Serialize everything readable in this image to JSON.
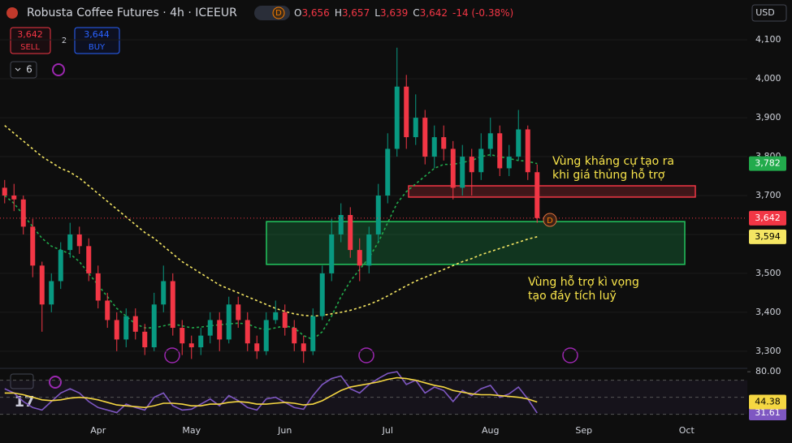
{
  "header": {
    "symbol": "Robusta Coffee Futures · 4h · ICEEUR",
    "badge": "D",
    "ohlc": [
      {
        "key": "O",
        "value": "3,656"
      },
      {
        "key": "H",
        "value": "3,657"
      },
      {
        "key": "L",
        "value": "3,639"
      },
      {
        "key": "C",
        "value": "3,642"
      }
    ],
    "change": "-14 (-0.38%)",
    "sell": {
      "price": "3,642",
      "label": "SELL"
    },
    "spread": "2",
    "buy": {
      "price": "3,644",
      "label": "BUY"
    },
    "indicators": "6",
    "currency": "USD"
  },
  "chart_data": [
    {
      "type": "candlestick",
      "up_color": "#089981",
      "down_color": "#f23645",
      "grid": true,
      "categories": [
        null,
        null,
        null,
        null,
        null,
        null,
        null,
        null,
        null,
        null,
        "Apr",
        null,
        null,
        null,
        null,
        null,
        null,
        null,
        null,
        null,
        "May",
        null,
        null,
        null,
        null,
        null,
        null,
        null,
        null,
        null,
        "Jun",
        null,
        null,
        null,
        null,
        null,
        null,
        null,
        null,
        null,
        null,
        "Jul",
        null,
        null,
        null,
        null,
        null,
        null,
        null,
        null,
        null,
        null,
        "Aug",
        null,
        null,
        null,
        null,
        null,
        null,
        null,
        null,
        null,
        "Sep",
        null,
        null,
        null,
        null,
        null,
        null,
        null,
        null,
        null,
        null,
        "Oct",
        null,
        null,
        null,
        null,
        null,
        null
      ],
      "ohlc": {
        "open": [
          3720,
          3700,
          3690,
          3620,
          3520,
          3420,
          3480,
          3560,
          3600,
          3570,
          3500,
          3430,
          3380,
          3330,
          3390,
          3350,
          3310,
          3420,
          3480,
          3360,
          3320,
          3310,
          3340,
          3380,
          3330,
          3420,
          3380,
          3320,
          3300,
          3380,
          3400,
          3360,
          3320,
          3300,
          3390,
          3500,
          3600,
          3650,
          3560,
          3520,
          3600,
          3700,
          3820,
          3980,
          3850,
          3900,
          3800,
          3850,
          3820,
          3720,
          3800,
          3760,
          3820,
          3860,
          3770,
          3800,
          3870,
          3760,
          null,
          null,
          null,
          null,
          null,
          null,
          null,
          null,
          null,
          null,
          null,
          null,
          null,
          null,
          null,
          null,
          null,
          null,
          null,
          null,
          null,
          null
        ],
        "high": [
          3740,
          3730,
          3700,
          3640,
          3530,
          3500,
          3580,
          3630,
          3620,
          3590,
          3520,
          3450,
          3400,
          3410,
          3410,
          3370,
          3450,
          3520,
          3500,
          3380,
          3340,
          3360,
          3400,
          3400,
          3440,
          3440,
          3400,
          3340,
          3400,
          3430,
          3420,
          3380,
          3340,
          3410,
          3520,
          3640,
          3680,
          3670,
          3590,
          3620,
          3730,
          3860,
          4080,
          4010,
          3960,
          3920,
          3880,
          3880,
          3840,
          3830,
          3820,
          3860,
          3900,
          3880,
          3830,
          3920,
          3880,
          3780,
          null,
          null,
          null,
          null,
          null,
          null,
          null,
          null,
          null,
          null,
          null,
          null,
          null,
          null,
          null,
          null,
          null,
          null,
          null,
          null,
          null,
          null
        ],
        "low": [
          3680,
          3660,
          3600,
          3490,
          3350,
          3400,
          3460,
          3540,
          3550,
          3480,
          3410,
          3360,
          3300,
          3310,
          3330,
          3290,
          3300,
          3400,
          3340,
          3290,
          3280,
          3290,
          3320,
          3300,
          3320,
          3360,
          3300,
          3280,
          3290,
          3370,
          3340,
          3300,
          3270,
          3290,
          3380,
          3480,
          3580,
          3540,
          3480,
          3500,
          3580,
          3680,
          3800,
          3820,
          3830,
          3780,
          3770,
          3790,
          3690,
          3700,
          3700,
          3740,
          3800,
          3750,
          3750,
          3790,
          3740,
          3630,
          null,
          null,
          null,
          null,
          null,
          null,
          null,
          null,
          null,
          null,
          null,
          null,
          null,
          null,
          null,
          null,
          null,
          null,
          null,
          null,
          null,
          null
        ],
        "close": [
          3700,
          3690,
          3620,
          3520,
          3420,
          3480,
          3560,
          3600,
          3570,
          3500,
          3430,
          3380,
          3330,
          3390,
          3350,
          3310,
          3420,
          3480,
          3360,
          3320,
          3310,
          3340,
          3380,
          3330,
          3420,
          3380,
          3320,
          3300,
          3380,
          3400,
          3360,
          3320,
          3300,
          3390,
          3500,
          3600,
          3650,
          3560,
          3520,
          3600,
          3700,
          3820,
          3980,
          3850,
          3900,
          3800,
          3850,
          3820,
          3720,
          3800,
          3760,
          3820,
          3860,
          3770,
          3800,
          3870,
          3760,
          3642,
          null,
          null,
          null,
          null,
          null,
          null,
          null,
          null,
          null,
          null,
          null,
          null,
          null,
          null,
          null,
          null,
          null,
          null,
          null,
          null,
          null,
          null
        ]
      },
      "last_label": "3,642",
      "last_color": "#f23645",
      "overlays": [
        {
          "color": "#f5e663",
          "last_label": "3,594",
          "values": [
            3880,
            3860,
            3840,
            3820,
            3800,
            3785,
            3770,
            3760,
            3745,
            3725,
            3705,
            3685,
            3665,
            3645,
            3625,
            3605,
            3590,
            3570,
            3550,
            3530,
            3515,
            3500,
            3485,
            3470,
            3460,
            3450,
            3440,
            3430,
            3420,
            3410,
            3402,
            3396,
            3392,
            3390,
            3392,
            3396,
            3400,
            3405,
            3412,
            3420,
            3430,
            3442,
            3455,
            3468,
            3480,
            3490,
            3500,
            3510,
            3520,
            3530,
            3538,
            3548,
            3556,
            3564,
            3572,
            3580,
            3588,
            3594,
            null,
            null,
            null,
            null,
            null,
            null,
            null,
            null,
            null,
            null,
            null,
            null,
            null,
            null,
            null,
            null,
            null,
            null,
            null,
            null,
            null,
            null
          ]
        },
        {
          "color": "#22ab4c",
          "last_label": "3,782",
          "values": [
            3700,
            3680,
            3650,
            3620,
            3590,
            3570,
            3560,
            3550,
            3530,
            3500,
            3470,
            3440,
            3410,
            3390,
            3370,
            3360,
            3360,
            3365,
            3370,
            3365,
            3360,
            3362,
            3365,
            3368,
            3370,
            3372,
            3370,
            3360,
            3355,
            3360,
            3365,
            3360,
            3340,
            3330,
            3350,
            3390,
            3440,
            3480,
            3510,
            3540,
            3580,
            3630,
            3680,
            3710,
            3730,
            3750,
            3770,
            3780,
            3780,
            3785,
            3790,
            3800,
            3805,
            3800,
            3795,
            3790,
            3788,
            3782,
            null,
            null,
            null,
            null,
            null,
            null,
            null,
            null,
            null,
            null,
            null,
            null,
            null,
            null,
            null,
            null,
            null,
            null,
            null,
            null,
            null,
            null
          ]
        }
      ],
      "zones": [
        {
          "top": 3725,
          "bottom": 3696,
          "color": "#f23645"
        },
        {
          "top": 3633,
          "bottom": 3523,
          "color": "#22c55e"
        }
      ],
      "annotations": [
        "Vùng kháng cự tạo ra",
        "khi giá thủng hỗ trợ",
        "Vùng hỗ trợ kì vọng",
        "tạo đáy tích luỹ"
      ],
      "marker_label": "D",
      "ylim": [
        3260,
        4140
      ],
      "yticks": [
        {
          "value": 4100,
          "label": "4,100"
        },
        {
          "value": 4000,
          "label": "4,000"
        },
        {
          "value": 3900,
          "label": "3,900"
        },
        {
          "value": 3800,
          "label": "3,800"
        },
        {
          "value": 3700,
          "label": "3,700"
        },
        {
          "value": 3600,
          "label": "3,600"
        },
        {
          "value": 3500,
          "label": "3,500"
        },
        {
          "value": 3400,
          "label": "3,400"
        },
        {
          "value": 3300,
          "label": "3,300"
        }
      ]
    },
    {
      "type": "line",
      "ylim": [
        23,
        83
      ],
      "yticks": [
        {
          "value": 80,
          "label": "80.00"
        }
      ],
      "bands": [
        70,
        50,
        30
      ],
      "series": [
        {
          "color": "#7e57c2",
          "last_label": "31.61",
          "values": [
            60,
            55,
            45,
            38,
            35,
            45,
            55,
            60,
            55,
            45,
            38,
            35,
            32,
            42,
            38,
            35,
            50,
            55,
            40,
            35,
            36,
            42,
            48,
            40,
            52,
            46,
            38,
            35,
            48,
            50,
            44,
            38,
            36,
            52,
            65,
            72,
            75,
            60,
            55,
            65,
            72,
            78,
            80,
            65,
            70,
            55,
            62,
            58,
            45,
            58,
            52,
            60,
            64,
            50,
            54,
            62,
            48,
            31.61,
            null,
            null,
            null,
            null,
            null,
            null,
            null,
            null,
            null,
            null,
            null,
            null,
            null,
            null,
            null,
            null,
            null,
            null,
            null,
            null,
            null,
            null
          ]
        },
        {
          "color": "#f5d742",
          "last_label": "44.38",
          "values": [
            55,
            55,
            53,
            50,
            47,
            46,
            47,
            49,
            50,
            49,
            47,
            44,
            41,
            40,
            39,
            38,
            40,
            43,
            43,
            42,
            40,
            40,
            42,
            42,
            44,
            45,
            44,
            42,
            42,
            43,
            44,
            43,
            41,
            42,
            46,
            52,
            58,
            62,
            64,
            66,
            68,
            71,
            73,
            72,
            70,
            67,
            64,
            62,
            58,
            56,
            54,
            53,
            53,
            52,
            51,
            50,
            48,
            44.38,
            null,
            null,
            null,
            null,
            null,
            null,
            null,
            null,
            null,
            null,
            null,
            null,
            null,
            null,
            null,
            null,
            null,
            null,
            null,
            null,
            null,
            null
          ]
        }
      ]
    }
  ]
}
